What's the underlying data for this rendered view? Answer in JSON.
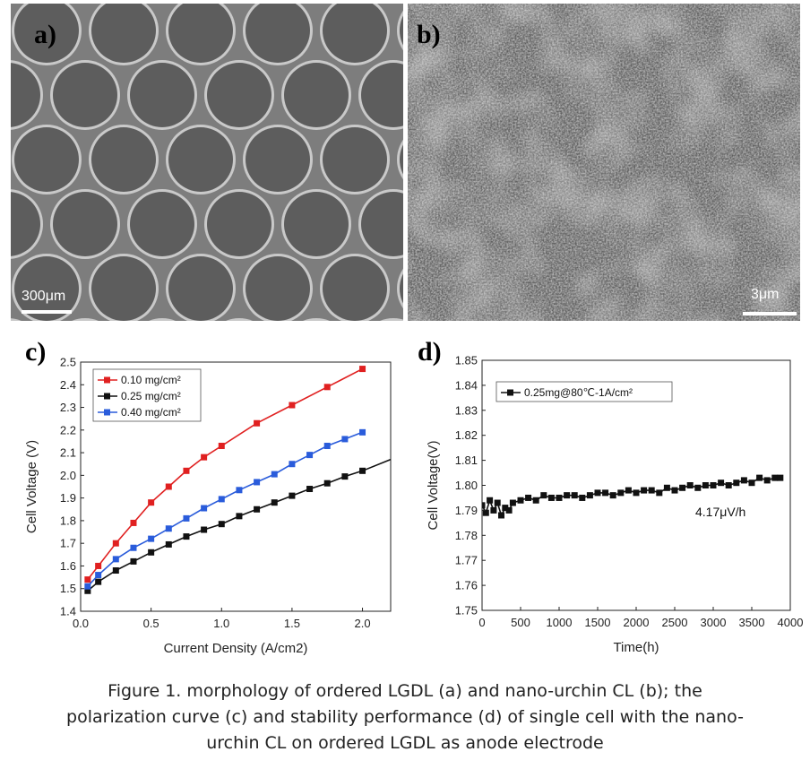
{
  "panels": {
    "a": {
      "letter": "a)",
      "scale_label": "300μm"
    },
    "b": {
      "letter": "b)",
      "scale_label": "3μm"
    },
    "c": {
      "letter": "c)"
    },
    "d": {
      "letter": "d)"
    }
  },
  "chart_data": [
    {
      "type": "line",
      "xlabel": "Current Density (A/cm2)",
      "ylabel": "Cell Voltage (V)",
      "xlim": [
        0,
        2.2
      ],
      "ylim": [
        1.4,
        2.5
      ],
      "xticks": [
        "0.0",
        "0.5",
        "1.0",
        "1.5",
        "2.0"
      ],
      "yticks": [
        "1.4",
        "1.5",
        "1.6",
        "1.7",
        "1.8",
        "1.9",
        "2.0",
        "2.1",
        "2.2",
        "2.3",
        "2.4",
        "2.5"
      ],
      "legend_position": "top-left",
      "series": [
        {
          "name": "0.10 mg/cm²",
          "color": "#e02020",
          "x": [
            0.05,
            0.125,
            0.25,
            0.375,
            0.5,
            0.625,
            0.75,
            0.875,
            1.0,
            1.25,
            1.5,
            1.75,
            2.0
          ],
          "y": [
            1.54,
            1.6,
            1.7,
            1.79,
            1.88,
            1.95,
            2.02,
            2.08,
            2.13,
            2.23,
            2.31,
            2.39,
            2.47
          ]
        },
        {
          "name": "0.25 mg/cm²",
          "color": "#111111",
          "x": [
            0.05,
            0.125,
            0.25,
            0.375,
            0.5,
            0.625,
            0.75,
            0.875,
            1.0,
            1.125,
            1.25,
            1.375,
            1.5,
            1.625,
            1.75,
            1.875,
            2.0
          ],
          "y": [
            1.49,
            1.53,
            1.58,
            1.62,
            1.66,
            1.695,
            1.73,
            1.76,
            1.785,
            1.82,
            1.85,
            1.88,
            1.91,
            1.94,
            1.965,
            1.995,
            2.02
          ]
        },
        {
          "name": "0.40 mg/cm²",
          "color": "#2a5cdb",
          "x": [
            0.05,
            0.125,
            0.25,
            0.375,
            0.5,
            0.625,
            0.75,
            0.875,
            1.0,
            1.125,
            1.25,
            1.375,
            1.5,
            1.625,
            1.75,
            1.875,
            2.0
          ],
          "y": [
            1.51,
            1.56,
            1.63,
            1.68,
            1.72,
            1.765,
            1.81,
            1.855,
            1.895,
            1.935,
            1.97,
            2.005,
            2.05,
            2.09,
            2.13,
            2.16,
            2.19
          ]
        }
      ]
    },
    {
      "type": "line",
      "xlabel": "Time(h)",
      "ylabel": "Cell Voltage(V)",
      "xlim": [
        0,
        4000
      ],
      "ylim": [
        1.75,
        1.85
      ],
      "xticks": [
        "0",
        "500",
        "1000",
        "1500",
        "2000",
        "2500",
        "3000",
        "3500",
        "4000"
      ],
      "yticks": [
        "1.75",
        "1.76",
        "1.77",
        "1.78",
        "1.79",
        "1.80",
        "1.81",
        "1.82",
        "1.83",
        "1.84",
        "1.85"
      ],
      "legend_position": "top-left",
      "annotation": "4.17μV/h",
      "series": [
        {
          "name": "0.25mg@80℃-1A/cm²",
          "color": "#111111",
          "x": [
            0,
            50,
            100,
            150,
            200,
            250,
            300,
            350,
            400,
            500,
            600,
            700,
            800,
            900,
            1000,
            1100,
            1200,
            1300,
            1400,
            1500,
            1600,
            1700,
            1800,
            1900,
            2000,
            2100,
            2200,
            2300,
            2400,
            2500,
            2600,
            2700,
            2800,
            2900,
            3000,
            3100,
            3200,
            3300,
            3400,
            3500,
            3600,
            3700,
            3800,
            3870
          ],
          "y": [
            1.792,
            1.789,
            1.794,
            1.79,
            1.793,
            1.788,
            1.791,
            1.79,
            1.793,
            1.794,
            1.795,
            1.794,
            1.796,
            1.795,
            1.795,
            1.796,
            1.796,
            1.795,
            1.796,
            1.797,
            1.797,
            1.796,
            1.797,
            1.798,
            1.797,
            1.798,
            1.798,
            1.797,
            1.799,
            1.798,
            1.799,
            1.8,
            1.799,
            1.8,
            1.8,
            1.801,
            1.8,
            1.801,
            1.802,
            1.801,
            1.803,
            1.802,
            1.803,
            1.803
          ]
        }
      ]
    }
  ],
  "caption": {
    "line1": "Figure 1. morphology of ordered LGDL (a) and nano-urchin CL (b); the",
    "line2": "polarization curve (c) and stability performance (d) of single cell with the nano-",
    "line3": "urchin CL on ordered LGDL as anode electrode"
  }
}
